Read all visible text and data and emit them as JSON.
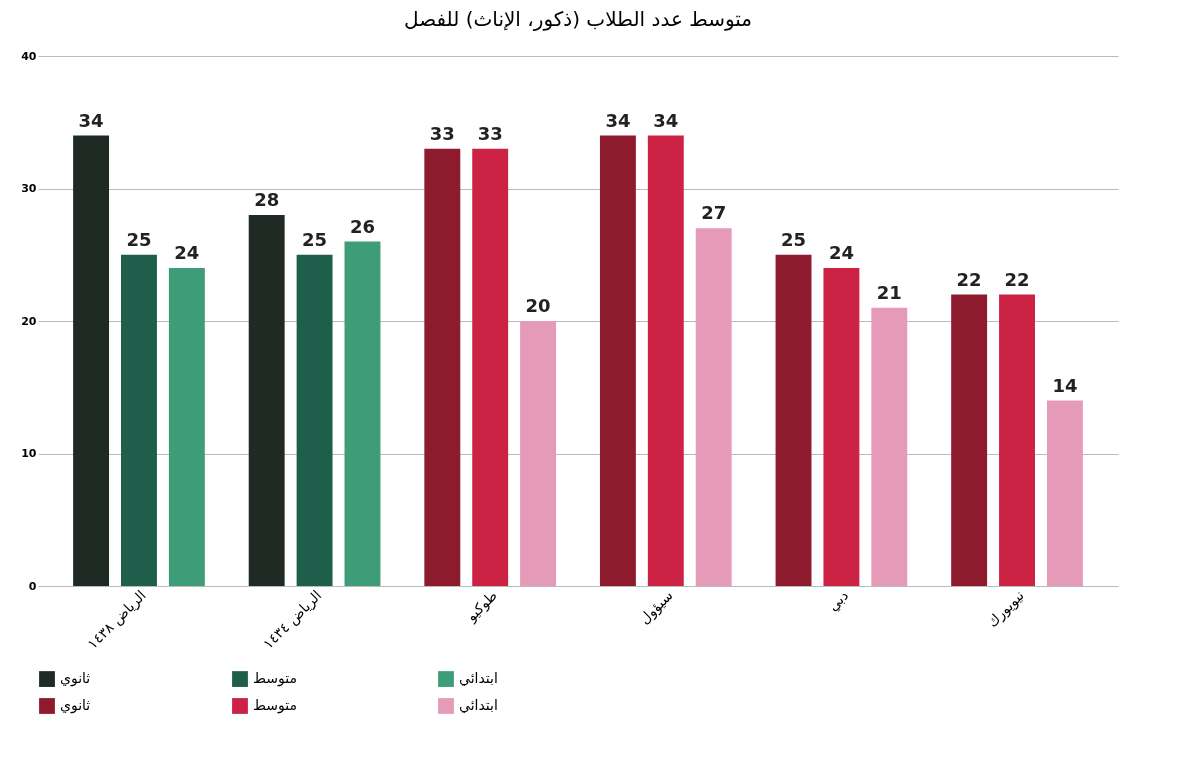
{
  "chart_data": {
    "type": "bar",
    "title": "متوسط عدد الطلاب (ذكور، الإناث) للفصل",
    "categories": [
      "الرياض ١٤٣٨",
      "الرياض ١٤٣٤",
      "طوكيو",
      "سيؤول",
      "دبي",
      "نيويورك"
    ],
    "series": [
      {
        "name": "ثانوي",
        "color": "#1f2a24",
        "values": [
          34,
          28,
          null,
          null,
          null,
          null
        ]
      },
      {
        "name": "متوسط",
        "color": "#1e5e4a",
        "values": [
          25,
          25,
          null,
          null,
          null,
          null
        ]
      },
      {
        "name": "ابتدائي",
        "color": "#3f9c78",
        "values": [
          24,
          26,
          null,
          null,
          null,
          null
        ]
      },
      {
        "name": "ثانوي",
        "color": "#8e1a2e",
        "values": [
          null,
          null,
          33,
          34,
          25,
          22
        ]
      },
      {
        "name": "متوسط",
        "color": "#cc2244",
        "values": [
          null,
          null,
          33,
          34,
          24,
          22
        ]
      },
      {
        "name": "ابتدائي",
        "color": "#e59ab8",
        "values": [
          null,
          null,
          20,
          27,
          21,
          14
        ]
      }
    ],
    "ylim": [
      0,
      40
    ],
    "yticks": [
      0,
      10,
      20,
      30,
      40
    ],
    "grid": "y",
    "legend": "bottom",
    "data_labels": true
  }
}
